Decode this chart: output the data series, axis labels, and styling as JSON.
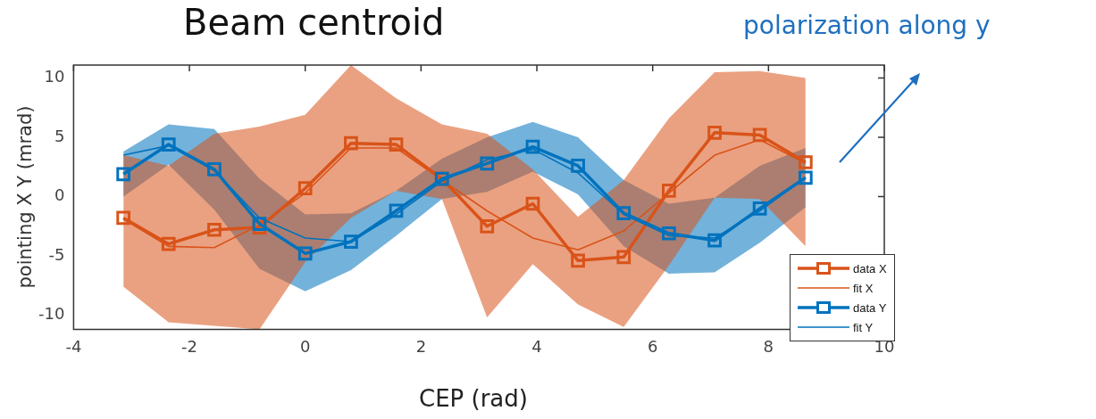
{
  "chart_data": {
    "type": "line",
    "title": "Beam centroid",
    "xlabel": "CEP (rad)",
    "ylabel": "pointing X Y (mrad)",
    "annotations": [
      "polarization along y"
    ],
    "xlim": [
      -4,
      10
    ],
    "xticks": [
      -4,
      -2,
      0,
      2,
      4,
      6,
      8,
      10
    ],
    "ylim": [
      -11.2,
      11.1
    ],
    "yticks": [
      -10,
      -5,
      0,
      5,
      10
    ],
    "grid": false,
    "legend": "bottom right",
    "x": [
      -3.14,
      -2.36,
      -1.57,
      -0.79,
      0,
      0.79,
      1.57,
      2.36,
      3.14,
      3.93,
      4.71,
      5.5,
      6.28,
      7.07,
      7.85,
      8.64
    ],
    "series": [
      {
        "name": "data X",
        "color": "#d95319",
        "marker": "square",
        "values": [
          -1.8,
          -4,
          -2.8,
          -2.6,
          0.7,
          4.5,
          4.4,
          1.5,
          -2.5,
          -0.6,
          -5.4,
          -5.1,
          0.5,
          5.4,
          5.2,
          2.9
        ],
        "upper": [
          3.5,
          2.6,
          5.3,
          5.9,
          6.9,
          11.1,
          8.3,
          6.1,
          5.3,
          2.3,
          -1.7,
          1.4,
          6.6,
          10.5,
          10.6,
          10
        ],
        "lower": [
          -7.6,
          -10.6,
          -10.9,
          -11.2,
          -5.5,
          -1.8,
          0.5,
          -0.2,
          -10.2,
          -5.7,
          -9.1,
          -11,
          -5.8,
          -0.1,
          -0.2,
          -4.2
        ]
      },
      {
        "name": "fit X",
        "color": "#d95319",
        "marker": "none",
        "values": [
          -1.9,
          -4.2,
          -4.3,
          -2.4,
          0.3,
          4.1,
          4.1,
          1.4,
          -1.2,
          -3.5,
          -4.5,
          -2.9,
          0.3,
          3.5,
          4.8,
          2.8
        ]
      },
      {
        "name": "data Y",
        "color": "#0072bd",
        "marker": "square",
        "values": [
          1.9,
          4.4,
          2.3,
          -2.3,
          -4.8,
          -3.8,
          -1.2,
          1.5,
          2.8,
          4.2,
          2.6,
          -1.4,
          -3.1,
          -3.7,
          -1,
          1.6
        ],
        "upper": [
          3.8,
          6.1,
          5.7,
          1.5,
          -1.5,
          -1.4,
          0.5,
          3.2,
          5,
          6.3,
          5,
          1.4,
          -0.6,
          -0.1,
          2.6,
          4.1
        ],
        "lower": [
          0,
          2.7,
          -1.1,
          -6.1,
          -8,
          -6.2,
          -3.3,
          -0.2,
          0.4,
          2.1,
          0.2,
          -4.2,
          -6.5,
          -6.4,
          -3.9,
          -0.9
        ]
      },
      {
        "name": "fit Y",
        "color": "#0072bd",
        "marker": "none",
        "values": [
          3.5,
          4.3,
          2.2,
          -1.8,
          -3.5,
          -3.8,
          -1.5,
          1.3,
          3.1,
          4,
          2,
          -1.5,
          -3.3,
          -3.5,
          -1.2,
          1.6
        ]
      }
    ]
  }
}
